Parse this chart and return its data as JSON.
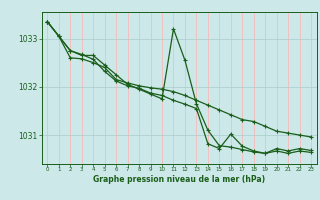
{
  "background_color": "#cce8e8",
  "grid_color_v": "#ffb0b0",
  "grid_color_h": "#aacccc",
  "line_color": "#1a5e1a",
  "marker": "+",
  "xlabel": "Graphe pression niveau de la mer (hPa)",
  "ylim": [
    1030.4,
    1033.55
  ],
  "xlim": [
    -0.5,
    23.5
  ],
  "yticks": [
    1031,
    1032,
    1033
  ],
  "xticks": [
    0,
    1,
    2,
    3,
    4,
    5,
    6,
    7,
    8,
    9,
    10,
    11,
    12,
    13,
    14,
    15,
    16,
    17,
    18,
    19,
    20,
    21,
    22,
    23
  ],
  "series": [
    [
      1033.35,
      1033.05,
      1032.75,
      1032.65,
      1032.65,
      1032.45,
      1032.25,
      1032.05,
      1031.95,
      1031.85,
      1031.75,
      1033.2,
      1032.55,
      1031.65,
      1031.1,
      1030.78,
      1030.75,
      1030.7,
      1030.65,
      1030.62,
      1030.72,
      1030.67,
      1030.72,
      1030.68
    ],
    [
      1033.35,
      1033.05,
      1032.6,
      1032.58,
      1032.5,
      1032.4,
      1032.15,
      1032.08,
      1032.02,
      1031.98,
      1031.95,
      1031.9,
      1031.82,
      1031.72,
      1031.62,
      1031.52,
      1031.42,
      1031.32,
      1031.28,
      1031.18,
      1031.08,
      1031.04,
      1031.0,
      1030.96
    ],
    [
      1033.35,
      1033.05,
      1032.75,
      1032.67,
      1032.57,
      1032.32,
      1032.12,
      1032.02,
      1031.97,
      1031.87,
      1031.82,
      1031.72,
      1031.64,
      1031.55,
      1030.82,
      1030.72,
      1031.02,
      1030.77,
      1030.67,
      1030.62,
      1030.67,
      1030.62,
      1030.67,
      1030.64
    ]
  ]
}
